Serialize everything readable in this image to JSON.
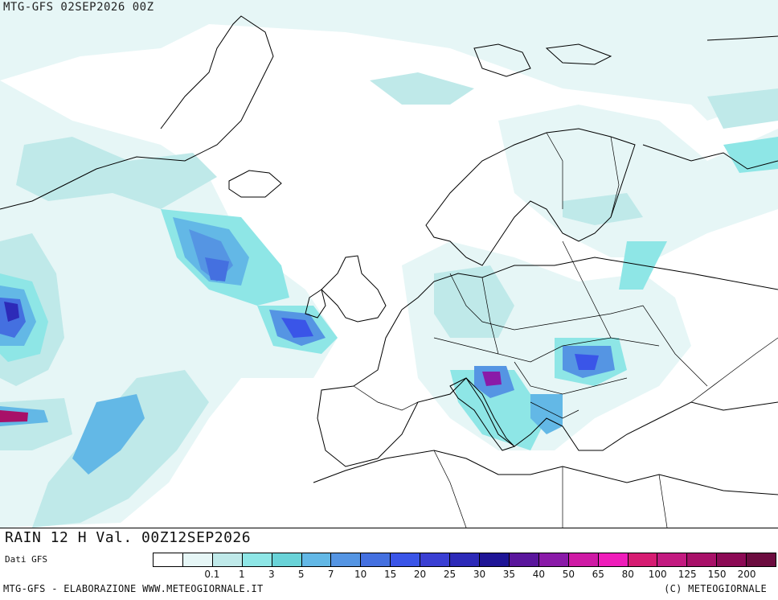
{
  "header": {
    "title": "MTG-GFS 02SEP2026 00Z"
  },
  "caption": {
    "title": "RAIN 12 H Val. 00Z12SEP2026",
    "source": "Dati GFS"
  },
  "footer": {
    "left": "MTG-GFS - ELABORAZIONE WWW.METEOGIORNALE.IT",
    "right": "(C) METEOGIORNALE"
  },
  "legend": {
    "colors": [
      "#ffffff",
      "#e6f6f6",
      "#bfe9e9",
      "#8ee6e6",
      "#69d3d8",
      "#63b8e6",
      "#5595e3",
      "#4470e0",
      "#3a55e8",
      "#3a3fd3",
      "#2d2ab8",
      "#1f1596",
      "#5a169c",
      "#8a1aa8",
      "#cf1aa5",
      "#ef1dba",
      "#d61c72",
      "#c31a80",
      "#a81068",
      "#8c0a55",
      "#6c0c3f"
    ],
    "labels": [
      "0.1",
      "1",
      "3",
      "5",
      "7",
      "10",
      "15",
      "20",
      "25",
      "30",
      "35",
      "40",
      "50",
      "65",
      "80",
      "100",
      "125",
      "150",
      "200"
    ]
  }
}
